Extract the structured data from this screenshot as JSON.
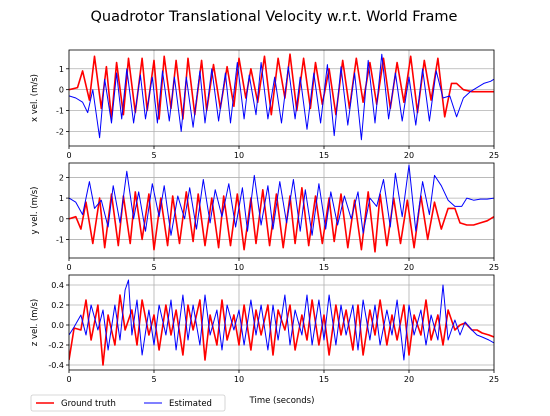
{
  "chart_data": {
    "type": "line",
    "title": "Quadrotor Translational Velocity w.r.t. World Frame",
    "xlabel": "Time (seconds)",
    "xlim": [
      0,
      25
    ],
    "xticks": [
      "0",
      "5",
      "10",
      "15",
      "20",
      "25"
    ],
    "grid": true,
    "legend": {
      "placement": "bottom-left",
      "entries": [
        {
          "name": "Ground truth",
          "color": "#ff0000"
        },
        {
          "name": "Estimated",
          "color": "#0000ff"
        }
      ]
    },
    "subplots": [
      {
        "ylabel": "x vel. (m/s)",
        "ylim": [
          -2.7,
          1.9
        ],
        "yticks": [
          "1",
          "0",
          "-1",
          "-2"
        ],
        "series": [
          {
            "name": "Ground truth",
            "color": "#ff0000",
            "x": [
              0,
              0.5,
              0.8,
              1.2,
              1.5,
              1.9,
              2.2,
              2.5,
              2.8,
              3.2,
              3.5,
              3.9,
              4.3,
              4.6,
              5.0,
              5.3,
              5.6,
              6.0,
              6.3,
              6.7,
              7.0,
              7.4,
              7.8,
              8.1,
              8.5,
              8.9,
              9.3,
              9.7,
              10.0,
              10.4,
              10.7,
              11.1,
              11.5,
              11.9,
              12.3,
              12.7,
              13.0,
              13.4,
              13.8,
              14.2,
              14.5,
              14.9,
              15.3,
              15.7,
              16.1,
              16.5,
              16.9,
              17.3,
              17.7,
              18.1,
              18.5,
              18.9,
              19.3,
              19.7,
              20.1,
              20.5,
              20.9,
              21.3,
              21.7,
              22.1,
              22.5,
              22.8,
              23.2,
              23.7,
              24.2,
              24.6,
              25.0
            ],
            "y": [
              0,
              0.1,
              0.9,
              -0.5,
              1.6,
              -0.9,
              1.1,
              -1.4,
              1.3,
              -1.2,
              1.5,
              -1.1,
              1.5,
              -1.0,
              1.4,
              -1.4,
              1.6,
              -0.9,
              1.4,
              -1.4,
              1.5,
              -1.2,
              1.4,
              -1.0,
              1.2,
              -0.9,
              1.1,
              -0.8,
              1.5,
              -0.4,
              1.0,
              -0.6,
              1.6,
              -1.2,
              1.5,
              -0.4,
              1.7,
              -1.0,
              1.5,
              -0.9,
              1.3,
              -0.7,
              1.0,
              -1.2,
              1.4,
              -0.9,
              1.5,
              -0.6,
              1.3,
              -0.7,
              1.5,
              -0.9,
              1.3,
              -0.6,
              1.6,
              -1.1,
              1.4,
              -0.5,
              1.5,
              -1.3,
              0.3,
              0.3,
              0.0,
              -0.1,
              -0.1,
              -0.1,
              -0.1
            ]
          },
          {
            "name": "Estimated",
            "color": "#0000ff",
            "x": [
              0,
              0.4,
              0.8,
              1.1,
              1.4,
              1.8,
              2.1,
              2.5,
              2.8,
              3.1,
              3.4,
              3.8,
              4.2,
              4.5,
              4.9,
              5.2,
              5.5,
              5.9,
              6.2,
              6.6,
              6.9,
              7.3,
              7.7,
              8.0,
              8.4,
              8.8,
              9.2,
              9.5,
              9.9,
              10.3,
              10.6,
              11.0,
              11.3,
              11.7,
              12.1,
              12.5,
              12.9,
              13.3,
              13.6,
              14.0,
              14.4,
              14.8,
              15.2,
              15.6,
              16.0,
              16.4,
              16.8,
              17.2,
              17.6,
              18.0,
              18.4,
              18.8,
              19.2,
              19.6,
              20.0,
              20.4,
              20.8,
              21.2,
              21.6,
              22.0,
              22.4,
              22.8,
              23.2,
              23.6,
              24.0,
              24.4,
              24.8,
              25.0
            ],
            "y": [
              -0.3,
              -0.4,
              -0.6,
              -1.1,
              0.0,
              -2.3,
              0.5,
              -1.6,
              0.8,
              -1.4,
              1.0,
              -1.6,
              0.7,
              -1.4,
              0.6,
              -1.6,
              0.9,
              -1.5,
              0.6,
              -2.0,
              0.6,
              -1.8,
              0.9,
              -1.6,
              1.0,
              -1.5,
              0.8,
              -1.6,
              1.3,
              -1.4,
              0.7,
              -1.2,
              1.3,
              -1.4,
              0.6,
              -1.6,
              1.1,
              -1.4,
              0.6,
              -1.9,
              0.8,
              -1.6,
              1.2,
              -2.2,
              1.1,
              -1.7,
              0.8,
              -2.4,
              1.4,
              -1.6,
              1.7,
              -1.4,
              0.8,
              -1.5,
              0.6,
              -1.7,
              1.0,
              -1.5,
              0.9,
              -0.4,
              -0.3,
              -1.3,
              -0.4,
              -0.1,
              0.1,
              0.3,
              0.4,
              0.5
            ]
          }
        ]
      },
      {
        "ylabel": "y vel. (m/s)",
        "ylim": [
          -1.9,
          2.7
        ],
        "yticks": [
          "2",
          "1",
          "0",
          "-1"
        ],
        "series": [
          {
            "name": "Ground truth",
            "color": "#ff0000",
            "x": [
              0,
              0.4,
              0.7,
              1.0,
              1.4,
              1.8,
              2.1,
              2.5,
              2.9,
              3.2,
              3.6,
              3.9,
              4.3,
              4.7,
              5.0,
              5.4,
              5.8,
              6.1,
              6.5,
              6.9,
              7.3,
              7.6,
              8.0,
              8.4,
              8.8,
              9.1,
              9.5,
              9.9,
              10.3,
              10.7,
              11.0,
              11.4,
              11.8,
              12.2,
              12.6,
              13.0,
              13.3,
              13.7,
              14.1,
              14.5,
              14.9,
              15.3,
              15.6,
              16.0,
              16.4,
              16.8,
              17.2,
              17.6,
              18.0,
              18.3,
              18.7,
              19.1,
              19.5,
              19.9,
              20.3,
              20.7,
              21.1,
              21.5,
              21.9,
              22.3,
              22.7,
              23.0,
              23.4,
              23.8,
              24.2,
              24.6,
              25.0
            ],
            "y": [
              0,
              0.1,
              -0.5,
              0.8,
              -1.2,
              1.0,
              -1.4,
              1.2,
              -1.3,
              1.1,
              -1.2,
              1.3,
              -1.0,
              1.2,
              -1.5,
              1.0,
              -1.3,
              1.1,
              -1.2,
              1.3,
              -1.1,
              1.2,
              -1.3,
              1.0,
              -1.4,
              1.1,
              -1.3,
              1.2,
              -1.5,
              1.0,
              -1.2,
              1.4,
              -1.3,
              1.2,
              -1.4,
              1.1,
              -1.2,
              1.5,
              -1.3,
              1.1,
              -1.2,
              1.0,
              -1.1,
              1.2,
              -1.4,
              0.9,
              -1.5,
              1.3,
              -1.6,
              1.2,
              -1.3,
              1.0,
              -1.2,
              0.9,
              -1.4,
              1.1,
              -1.0,
              0.8,
              -0.5,
              0.5,
              0.5,
              -0.2,
              -0.3,
              -0.3,
              -0.2,
              -0.1,
              0.1
            ]
          },
          {
            "name": "Estimated",
            "color": "#0000ff",
            "x": [
              0,
              0.4,
              0.8,
              1.2,
              1.5,
              1.9,
              2.3,
              2.6,
              3.0,
              3.4,
              3.8,
              4.1,
              4.5,
              4.9,
              5.3,
              5.6,
              6.0,
              6.4,
              6.8,
              7.1,
              7.5,
              7.9,
              8.3,
              8.6,
              9.0,
              9.4,
              9.8,
              10.2,
              10.5,
              10.9,
              11.3,
              11.7,
              12.0,
              12.4,
              12.8,
              13.2,
              13.6,
              13.9,
              14.3,
              14.7,
              15.1,
              15.4,
              15.8,
              16.2,
              16.6,
              17.0,
              17.3,
              17.7,
              18.1,
              18.5,
              18.9,
              19.2,
              19.6,
              20.0,
              20.4,
              20.8,
              21.2,
              21.5,
              21.9,
              22.3,
              22.7,
              23.1,
              23.4,
              23.8,
              24.2,
              24.6,
              25.0
            ],
            "y": [
              1.0,
              0.8,
              0.2,
              1.8,
              0.5,
              0.9,
              -0.4,
              1.6,
              -0.2,
              2.3,
              0.0,
              1.3,
              -0.6,
              1.7,
              0.1,
              1.6,
              -0.8,
              1.1,
              0.0,
              1.5,
              -0.5,
              1.9,
              -0.2,
              1.4,
              0.1,
              1.7,
              -0.4,
              1.5,
              -0.6,
              2.1,
              -0.3,
              1.6,
              -0.5,
              1.8,
              -0.2,
              1.9,
              -0.6,
              1.4,
              -0.8,
              1.7,
              -0.5,
              1.3,
              -0.3,
              1.1,
              0.0,
              1.3,
              -0.7,
              1.0,
              0.6,
              1.9,
              -0.4,
              2.2,
              0.1,
              2.6,
              -0.6,
              1.8,
              0.2,
              2.1,
              1.6,
              0.9,
              0.6,
              0.6,
              1.0,
              0.9,
              0.95,
              0.95,
              1.0
            ]
          }
        ]
      },
      {
        "ylabel": "z vel. (m/s)",
        "ylim": [
          -0.45,
          0.5
        ],
        "yticks": [
          "0.4",
          "0.2",
          "0.0",
          "-0.2",
          "-0.4"
        ],
        "series": [
          {
            "name": "Ground truth",
            "color": "#ff0000",
            "x": [
              0,
              0.3,
              0.7,
              1.0,
              1.3,
              1.7,
              2.0,
              2.3,
              2.7,
              3.0,
              3.3,
              3.7,
              4.0,
              4.3,
              4.7,
              5.0,
              5.3,
              5.7,
              6.0,
              6.3,
              6.7,
              7.0,
              7.3,
              7.7,
              8.0,
              8.3,
              8.7,
              9.0,
              9.3,
              9.7,
              10.0,
              10.3,
              10.7,
              11.0,
              11.3,
              11.7,
              12.0,
              12.3,
              12.7,
              13.0,
              13.3,
              13.7,
              14.0,
              14.3,
              14.7,
              15.0,
              15.3,
              15.7,
              16.0,
              16.3,
              16.7,
              17.0,
              17.3,
              17.7,
              18.0,
              18.3,
              18.7,
              19.0,
              19.3,
              19.7,
              20.0,
              20.3,
              20.7,
              21.0,
              21.3,
              21.7,
              22.0,
              22.3,
              22.7,
              23.0,
              23.3,
              23.7,
              24.0,
              24.3,
              24.7,
              25.0
            ],
            "y": [
              -0.35,
              -0.03,
              -0.05,
              0.25,
              -0.15,
              0.2,
              -0.4,
              0.1,
              -0.2,
              0.3,
              -0.05,
              0.15,
              -0.2,
              0.25,
              -0.1,
              0.1,
              -0.25,
              0.2,
              -0.1,
              0.15,
              -0.3,
              0.2,
              -0.05,
              0.25,
              -0.35,
              0.1,
              -0.2,
              0.25,
              -0.15,
              0.1,
              -0.2,
              0.2,
              -0.25,
              0.15,
              -0.1,
              0.2,
              -0.3,
              0.15,
              -0.05,
              0.2,
              -0.25,
              0.1,
              -0.15,
              0.25,
              -0.2,
              0.1,
              -0.3,
              0.2,
              -0.1,
              0.15,
              -0.25,
              0.2,
              -0.3,
              0.15,
              -0.1,
              0.25,
              -0.2,
              0.1,
              -0.15,
              0.2,
              -0.3,
              0.1,
              -0.1,
              0.25,
              -0.15,
              0.1,
              -0.2,
              0.15,
              -0.05,
              0.0,
              0.02,
              -0.05,
              -0.05,
              -0.08,
              -0.1,
              -0.12
            ]
          },
          {
            "name": "Estimated",
            "color": "#0000ff",
            "x": [
              0,
              0.3,
              0.7,
              1.0,
              1.3,
              1.7,
              2.0,
              2.3,
              2.7,
              3.0,
              3.3,
              3.5,
              3.7,
              4.0,
              4.3,
              4.7,
              5.0,
              5.3,
              5.7,
              6.0,
              6.3,
              6.7,
              7.0,
              7.3,
              7.7,
              8.0,
              8.3,
              8.7,
              9.0,
              9.3,
              9.7,
              10.0,
              10.3,
              10.7,
              11.0,
              11.3,
              11.7,
              12.0,
              12.3,
              12.7,
              13.0,
              13.3,
              13.7,
              14.0,
              14.3,
              14.7,
              15.0,
              15.3,
              15.7,
              16.0,
              16.3,
              16.7,
              17.0,
              17.3,
              17.7,
              18.0,
              18.3,
              18.7,
              19.0,
              19.3,
              19.7,
              20.0,
              20.3,
              20.7,
              21.0,
              21.3,
              21.7,
              22.0,
              22.3,
              22.7,
              23.0,
              23.3,
              23.7,
              24.0,
              24.3,
              24.7,
              25.0
            ],
            "y": [
              -0.1,
              -0.02,
              0.1,
              -0.1,
              0.2,
              -0.05,
              0.15,
              -0.25,
              0.2,
              -0.15,
              0.35,
              0.45,
              -0.1,
              0.25,
              -0.3,
              0.15,
              -0.2,
              0.2,
              -0.1,
              0.25,
              -0.25,
              0.3,
              -0.15,
              0.2,
              -0.2,
              0.3,
              -0.1,
              0.15,
              -0.25,
              0.2,
              -0.05,
              0.15,
              -0.2,
              0.25,
              -0.1,
              0.2,
              -0.25,
              0.2,
              -0.15,
              0.3,
              -0.2,
              0.15,
              -0.1,
              0.3,
              -0.2,
              0.25,
              -0.15,
              0.3,
              -0.2,
              0.2,
              -0.1,
              0.2,
              -0.25,
              0.25,
              -0.15,
              0.2,
              -0.2,
              0.15,
              -0.1,
              0.25,
              -0.35,
              0.2,
              -0.1,
              0.15,
              -0.2,
              0.1,
              -0.15,
              0.4,
              -0.15,
              0.05,
              -0.1,
              0.03,
              -0.05,
              -0.1,
              -0.12,
              -0.15,
              -0.18
            ]
          }
        ]
      }
    ]
  }
}
